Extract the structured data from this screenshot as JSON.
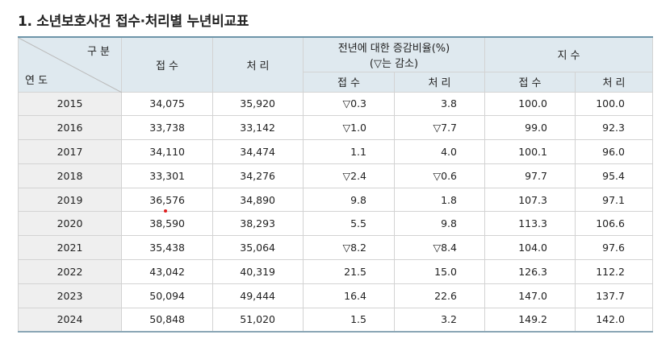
{
  "title": "1. 소년보호사건 접수·처리별 누년비교표",
  "table": {
    "corner": {
      "top": "구 분",
      "bottom": "연 도"
    },
    "header": {
      "received": "접 수",
      "processed": "처 리",
      "change": [
        "전년에 대한 증감비율(%)",
        "(▽는 감소)"
      ],
      "index": "지 수"
    },
    "subheader": [
      "접 수",
      "처 리",
      "접 수",
      "처 리"
    ],
    "rows": [
      [
        "2015",
        "34,075",
        "35,920",
        "▽0.3",
        "3.8",
        "100.0",
        "100.0"
      ],
      [
        "2016",
        "33,738",
        "33,142",
        "▽1.0",
        "▽7.7",
        "99.0",
        "92.3"
      ],
      [
        "2017",
        "34,110",
        "34,474",
        "1.1",
        "4.0",
        "100.1",
        "96.0"
      ],
      [
        "2018",
        "33,301",
        "34,276",
        "▽2.4",
        "▽0.6",
        "97.7",
        "95.4"
      ],
      [
        "2019",
        "36,576",
        "34,890",
        "9.8",
        "1.8",
        "107.3",
        "97.1"
      ],
      [
        "2020",
        "38,590",
        "38,293",
        "5.5",
        "9.8",
        "113.3",
        "106.6"
      ],
      [
        "2021",
        "35,438",
        "35,064",
        "▽8.2",
        "▽8.4",
        "104.0",
        "97.6"
      ],
      [
        "2022",
        "43,042",
        "40,319",
        "21.5",
        "15.0",
        "126.3",
        "112.2"
      ],
      [
        "2023",
        "50,094",
        "49,444",
        "16.4",
        "22.6",
        "147.0",
        "137.7"
      ],
      [
        "2024",
        "50,848",
        "51,020",
        "1.5",
        "3.2",
        "149.2",
        "142.0"
      ]
    ]
  }
}
